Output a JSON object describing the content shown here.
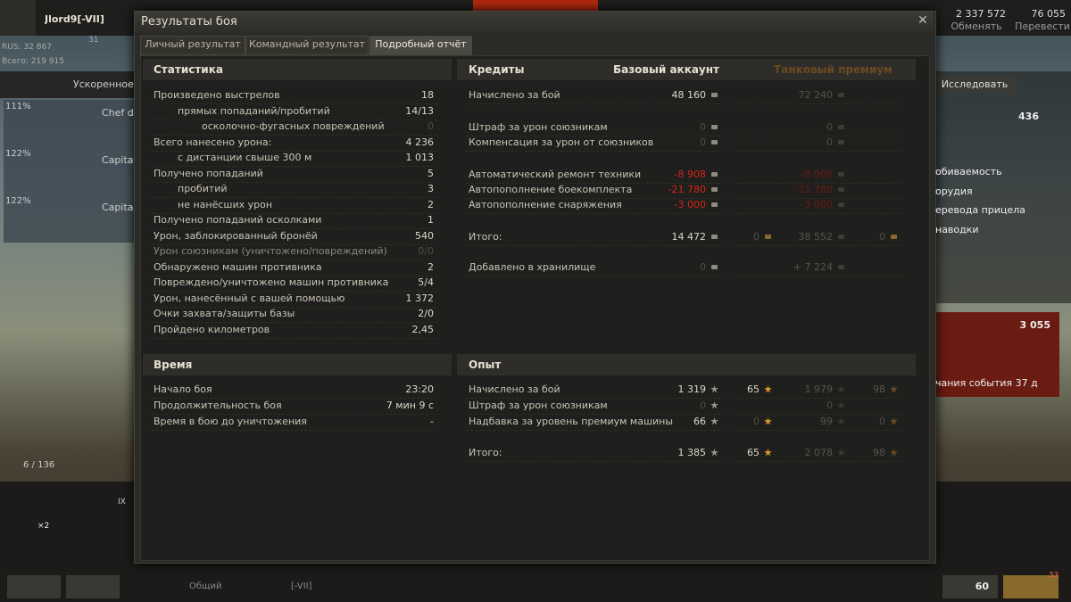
{
  "header": {
    "title": "Результаты боя"
  },
  "tabs": [
    "Личный результат",
    "Командный результат",
    "Подробный отчёт"
  ],
  "statistics": {
    "title": "Статистика",
    "rows": [
      [
        "Произведено выстрелов",
        "18"
      ],
      [
        "прямых попаданий/пробитий",
        "14/13"
      ],
      [
        "осколочно-фугасных повреждений",
        "0"
      ],
      [
        "Всего нанесено урона:",
        "4 236"
      ],
      [
        "с дистанции свыше 300 м",
        "1 013"
      ],
      [
        "Получено попаданий",
        "5"
      ],
      [
        "пробитий",
        "3"
      ],
      [
        "не нанёсших урон",
        "2"
      ],
      [
        "Получено попаданий осколками",
        "1"
      ],
      [
        "Урон, заблокированный бронёй",
        "540"
      ],
      [
        "Урон союзникам (уничтожено/повреждений)",
        "0/0"
      ],
      [
        "Обнаружено машин противника",
        "2"
      ],
      [
        "Повреждено/уничтожено машин противника",
        "5/4"
      ],
      [
        "Урон, нанесённый с вашей помощью",
        "1 372"
      ],
      [
        "Очки захвата/защиты базы",
        "2/0"
      ],
      [
        "Пройдено километров",
        "2,45"
      ]
    ]
  },
  "credits": {
    "title": "Кредиты",
    "base_title": "Базовый аккаунт",
    "premium_title": "Танковый премиум",
    "rows": [
      {
        "label": "Начислено за бой",
        "base": [
          "48 160"
        ],
        "premium": [
          "72 240"
        ]
      },
      {
        "label": "Штраф за урон союзникам",
        "base": [
          "0"
        ],
        "premium": [
          "0"
        ]
      },
      {
        "label": "Компенсация за урон от союзников",
        "base": [
          "0"
        ],
        "premium": [
          "0"
        ]
      },
      {
        "label": "Автоматический ремонт техники",
        "base": [
          "-8 908"
        ],
        "premium": [
          "-8 908"
        ]
      },
      {
        "label": "Автопополнение боекомплекта",
        "base": [
          "-21 780"
        ],
        "premium": [
          "-21 780"
        ]
      },
      {
        "label": "Автопополнение снаряжения",
        "base": [
          "-3 000"
        ],
        "premium": [
          "-3 000"
        ]
      },
      {
        "label": "Итого:",
        "base": [
          "14 472",
          "0"
        ],
        "premium": [
          "38 552",
          "0"
        ]
      },
      {
        "label": "Добавлено в хранилище",
        "base": [
          "0"
        ],
        "premium": [
          "+ 7 224"
        ]
      }
    ]
  },
  "time": {
    "title": "Время",
    "rows": [
      [
        "Начало боя",
        "23:20"
      ],
      [
        "Продолжительность боя",
        "7 мин 9 с"
      ],
      [
        "Время в бою до уничтожения",
        "-"
      ]
    ]
  },
  "experience": {
    "title": "Опыт",
    "rows": [
      {
        "label": "Начислено за бой",
        "base": [
          "1 319",
          "65"
        ],
        "premium": [
          "1 979",
          "98"
        ]
      },
      {
        "label": "Штраф за урон союзникам",
        "base": [
          "0"
        ],
        "premium": [
          "0"
        ]
      },
      {
        "label": "Надбавка за уровень премиум машины",
        "base": [
          "66",
          "0"
        ],
        "premium": [
          "99",
          "0"
        ]
      },
      {
        "label": "Итого:",
        "base": [
          "1 385",
          "65"
        ],
        "premium": [
          "2 078",
          "98"
        ]
      }
    ]
  },
  "background": {
    "player": "Jlord9[-VII]",
    "rus": "RUS: 32 867",
    "total": "Всего: 219 915",
    "level": "31",
    "credits": "2 337 572",
    "exchange": "Обменять",
    "gold": "76 055",
    "transfer": "Перевести",
    "training": "Ускоренное об",
    "research": "Исследовать",
    "xp": "436",
    "crew": [
      [
        "111%",
        "Chef d'"
      ],
      [
        "122%",
        "Capitai"
      ],
      [
        "122%",
        "Capitai"
      ]
    ],
    "params": [
      "обиваемость",
      "орудия",
      "еревода прицела",
      "наводки"
    ],
    "bonds": "3 055",
    "event": "чания события 37 д",
    "count": "6 / 136",
    "multiplier": "×2",
    "vehicle_tier": "IX",
    "channel": "Общий",
    "clan": "[-VII]",
    "ranks": "60",
    "notifications": "53"
  }
}
